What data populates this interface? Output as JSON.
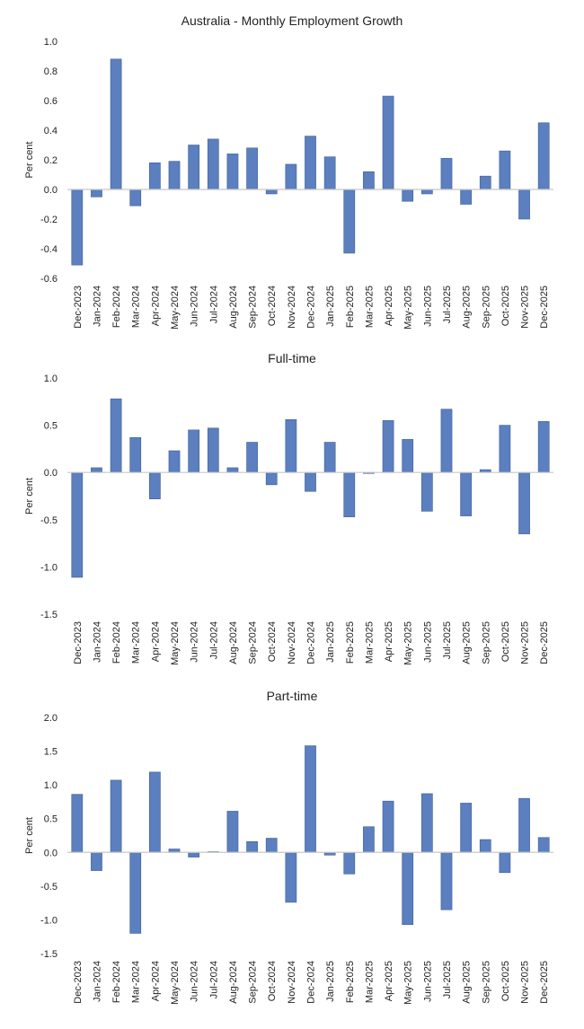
{
  "chart_data": [
    {
      "type": "bar",
      "title": "Australia - Monthly Employment Growth",
      "xlabel": "",
      "ylabel": "Per cent",
      "ylim": [
        -0.6,
        1.0
      ],
      "ytick_step": 0.2,
      "ytick_labels": [
        "-0.6",
        "-0.4",
        "-0.2",
        "0.0",
        "0.2",
        "0.4",
        "0.6",
        "0.8",
        "1.0"
      ],
      "grid": false,
      "bar_color": "#5b7fbf",
      "categories": [
        "Dec-2023",
        "Jan-2024",
        "Feb-2024",
        "Mar-2024",
        "Apr-2024",
        "May-2024",
        "Jun-2024",
        "Jul-2024",
        "Aug-2024",
        "Sep-2024",
        "Oct-2024",
        "Nov-2024",
        "Dec-2024",
        "Jan-2025",
        "Feb-2025",
        "Mar-2025",
        "Apr-2025",
        "May-2025",
        "Jun-2025",
        "Jul-2025",
        "Aug-2025",
        "Sep-2025",
        "Oct-2025",
        "Nov-2025",
        "Dec-2025"
      ],
      "values": [
        -0.51,
        -0.05,
        0.88,
        -0.11,
        0.18,
        0.19,
        0.3,
        0.34,
        0.24,
        0.28,
        -0.03,
        0.17,
        0.36,
        0.22,
        -0.43,
        0.12,
        0.63,
        -0.08,
        -0.03,
        0.21,
        -0.1,
        0.09,
        0.26,
        -0.2,
        0.45
      ]
    },
    {
      "type": "bar",
      "title": "Full-time",
      "xlabel": "",
      "ylabel": "Per cent",
      "ylim": [
        -1.5,
        1.0
      ],
      "ytick_step": 0.5,
      "ytick_labels": [
        "-1.5",
        "-1.0",
        "-0.5",
        "0.0",
        "0.5",
        "1.0"
      ],
      "grid": false,
      "bar_color": "#5b7fbf",
      "categories": [
        "Dec-2023",
        "Jan-2024",
        "Feb-2024",
        "Mar-2024",
        "Apr-2024",
        "May-2024",
        "Jun-2024",
        "Jul-2024",
        "Aug-2024",
        "Sep-2024",
        "Oct-2024",
        "Nov-2024",
        "Dec-2024",
        "Jan-2025",
        "Feb-2025",
        "Mar-2025",
        "Apr-2025",
        "May-2025",
        "Jun-2025",
        "Jul-2025",
        "Aug-2025",
        "Sep-2025",
        "Oct-2025",
        "Nov-2025",
        "Dec-2025"
      ],
      "values": [
        -1.11,
        0.05,
        0.78,
        0.37,
        -0.28,
        0.23,
        0.45,
        0.47,
        0.05,
        0.32,
        -0.13,
        0.56,
        -0.2,
        0.32,
        -0.47,
        -0.01,
        0.55,
        0.35,
        -0.41,
        0.67,
        -0.46,
        0.03,
        0.5,
        -0.65,
        0.54
      ]
    },
    {
      "type": "bar",
      "title": "Part-time",
      "xlabel": "",
      "ylabel": "Per cent",
      "ylim": [
        -1.5,
        2.0
      ],
      "ytick_step": 0.5,
      "ytick_labels": [
        "-1.5",
        "-1.0",
        "-0.5",
        "0.0",
        "0.5",
        "1.0",
        "1.5",
        "2.0"
      ],
      "grid": false,
      "bar_color": "#5b7fbf",
      "categories": [
        "Dec-2023",
        "Jan-2024",
        "Feb-2024",
        "Mar-2024",
        "Apr-2024",
        "May-2024",
        "Jun-2024",
        "Jul-2024",
        "Aug-2024",
        "Sep-2024",
        "Oct-2024",
        "Nov-2024",
        "Dec-2024",
        "Jan-2025",
        "Feb-2025",
        "Mar-2025",
        "Apr-2025",
        "May-2025",
        "Jun-2025",
        "Jul-2025",
        "Aug-2025",
        "Sep-2025",
        "Oct-2025",
        "Nov-2025",
        "Dec-2025"
      ],
      "values": [
        0.86,
        -0.27,
        1.07,
        -1.2,
        1.19,
        0.05,
        -0.07,
        0.01,
        0.61,
        0.16,
        0.21,
        -0.74,
        1.58,
        -0.04,
        -0.32,
        0.38,
        0.76,
        -1.07,
        0.87,
        -0.85,
        0.73,
        0.19,
        -0.3,
        0.8,
        0.22
      ]
    }
  ]
}
